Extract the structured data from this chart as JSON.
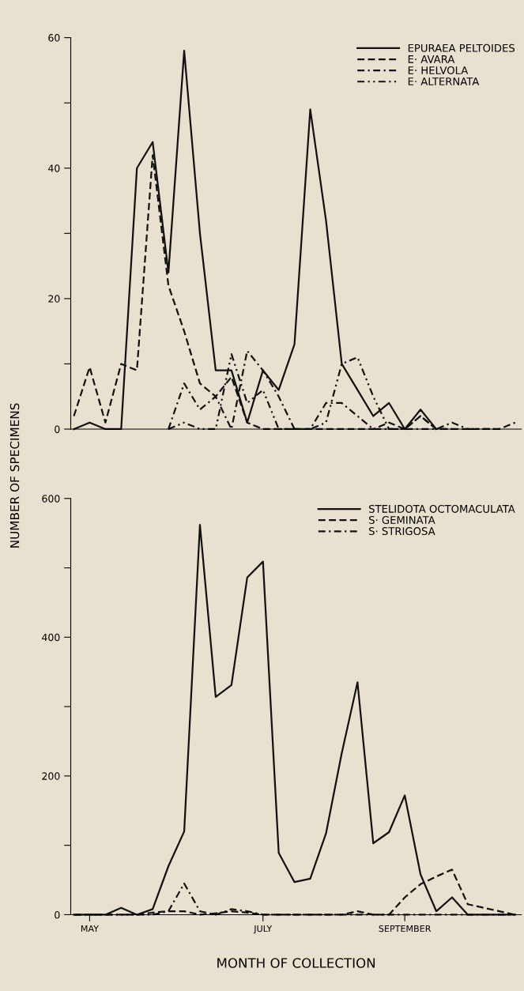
{
  "chart_data": [
    {
      "type": "line",
      "ylabel": "NUMBER OF SPECIMENS",
      "ylim": [
        0,
        60
      ],
      "categories": [
        null,
        null,
        null,
        null,
        null,
        null,
        null,
        null,
        null,
        null,
        null,
        null,
        null,
        null,
        null,
        null,
        null,
        null,
        null,
        null,
        null,
        null,
        null,
        null,
        null,
        null,
        null,
        null,
        null
      ],
      "yticks": [
        0,
        {
          "value": 10,
          "label": null
        },
        20,
        {
          "value": 30,
          "label": null
        },
        40,
        {
          "value": 50,
          "label": null
        },
        60
      ],
      "grid": false,
      "legend": "top right",
      "marker": "none",
      "series": [
        {
          "name": "EPURAEA PELTOIDES",
          "color": "#111111",
          "line_style": "solid",
          "values": [
            0,
            1,
            0,
            0,
            40,
            44,
            24,
            58,
            30,
            9,
            9,
            1,
            9,
            6,
            13,
            49,
            32,
            10,
            6,
            2,
            4,
            0,
            3,
            0,
            null,
            null,
            null,
            null,
            null
          ]
        },
        {
          "name": "E· AVARA",
          "color": "#111111",
          "line_style": "dashed",
          "values": [
            2,
            9.5,
            1,
            10,
            9,
            42,
            22,
            15,
            7,
            5,
            8,
            1,
            0,
            0,
            0,
            0,
            0,
            0,
            0,
            0,
            1,
            0,
            2,
            0,
            0,
            0,
            0,
            0,
            1
          ]
        },
        {
          "name": "E· HELVOLA",
          "color": "#111111",
          "line_style": "dashdot",
          "values": [
            null,
            null,
            null,
            null,
            null,
            null,
            0,
            7,
            3,
            5,
            0,
            12,
            9,
            5,
            0,
            0,
            4,
            4,
            2,
            0,
            0,
            0,
            0,
            0,
            1,
            0,
            0,
            0,
            null
          ]
        },
        {
          "name": "E· ALTERNATA",
          "color": "#111111",
          "line_style": "dashdotdot",
          "values": [
            null,
            null,
            null,
            null,
            null,
            null,
            0,
            1,
            0,
            0,
            11.5,
            4,
            6,
            0,
            0,
            0,
            1,
            10,
            11,
            5,
            0,
            0,
            2,
            0,
            0,
            null,
            null,
            null,
            null
          ]
        }
      ]
    },
    {
      "type": "line",
      "xlabel": "MONTH OF COLLECTION",
      "ylim": [
        0,
        600
      ],
      "categories": [
        null,
        "MAY",
        null,
        null,
        null,
        null,
        null,
        null,
        null,
        null,
        null,
        null,
        "JULY",
        null,
        null,
        null,
        null,
        null,
        null,
        null,
        null,
        "SEPTEMBER",
        null,
        null,
        null,
        null,
        null,
        null,
        null
      ],
      "yticks": [
        0,
        {
          "value": 100,
          "label": null
        },
        200,
        {
          "value": 300,
          "label": null
        },
        400,
        {
          "value": 500,
          "label": null
        },
        600
      ],
      "grid": false,
      "legend": "top right",
      "marker": "none",
      "series": [
        {
          "name": "STELIDOTA OCTOMACULATA",
          "color": "#111111",
          "line_style": "solid",
          "values": [
            0,
            0,
            0,
            10,
            0,
            8,
            70,
            120,
            562,
            314,
            331,
            486,
            509,
            89,
            47,
            52,
            117,
            233,
            335,
            103,
            119,
            172,
            58,
            5,
            25,
            0,
            0,
            0,
            0
          ]
        },
        {
          "name": "S· GEMINATA",
          "color": "#111111",
          "line_style": "dashed",
          "values": [
            0,
            0,
            0,
            0,
            0,
            3,
            5,
            5,
            0,
            2,
            5,
            3,
            0,
            0,
            0,
            0,
            0,
            0,
            5,
            0,
            0,
            25,
            44,
            55,
            65,
            15,
            10,
            5,
            0
          ]
        },
        {
          "name": "S· STRIGOSA",
          "color": "#111111",
          "line_style": "dashdot",
          "values": [
            0,
            0,
            0,
            0,
            0,
            0,
            5,
            45,
            5,
            0,
            8,
            5,
            0,
            0,
            0,
            0,
            0,
            0,
            0,
            0,
            0,
            0,
            0,
            0,
            0,
            0,
            0,
            0,
            0
          ]
        }
      ]
    }
  ]
}
